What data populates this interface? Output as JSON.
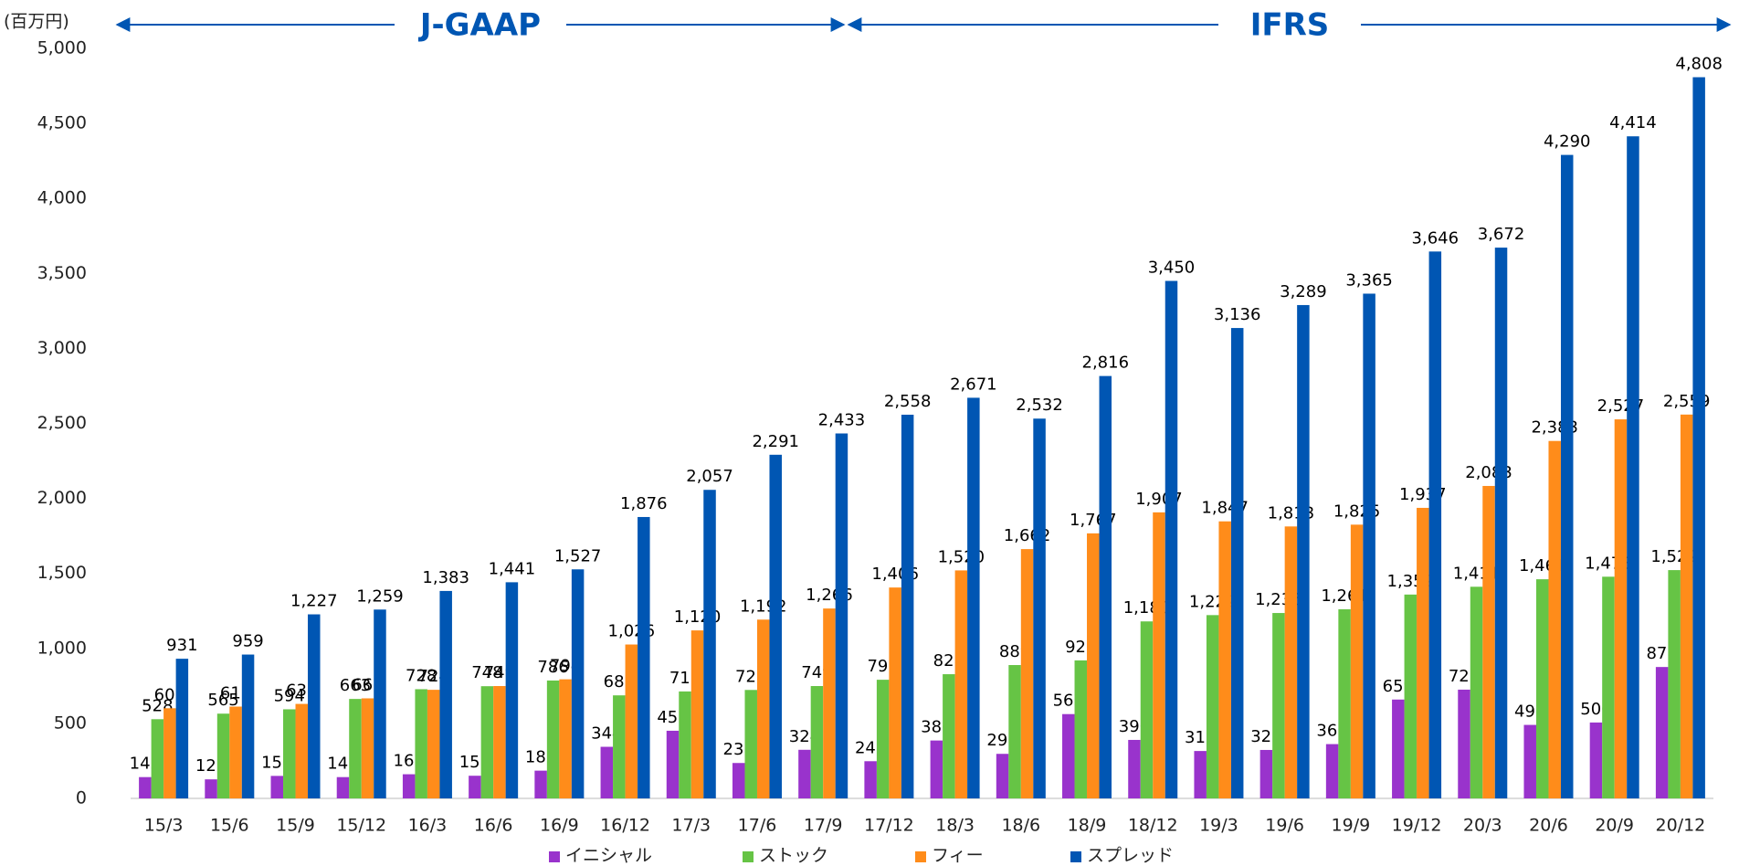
{
  "chart_data": {
    "type": "bar",
    "unit_label": "(百万円)",
    "annotations": [
      "J-GAAP",
      "IFRS"
    ],
    "categories": [
      "15/3",
      "15/6",
      "15/9",
      "15/12",
      "16/3",
      "16/6",
      "16/9",
      "16/12",
      "17/3",
      "17/6",
      "17/9",
      "17/12",
      "18/3",
      "18/6",
      "18/9",
      "18/12",
      "19/3",
      "19/6",
      "19/9",
      "19/12",
      "20/3",
      "20/6",
      "20/9",
      "20/12"
    ],
    "series": [
      {
        "name": "イニシャル",
        "color": "#9933cc",
        "values": [
          142,
          127,
          150,
          142,
          161,
          151,
          185,
          344,
          451,
          236,
          324,
          248,
          386,
          297,
          562,
          390,
          316,
          323,
          362,
          659,
          725,
          490,
          506,
          876
        ]
      },
      {
        "name": "ストック",
        "color": "#66c445",
        "values": [
          528,
          565,
          594,
          663,
          728,
          748,
          786,
          687,
          713,
          723,
          749,
          791,
          828,
          889,
          920,
          1180,
          1222,
          1236,
          1261,
          1359,
          1411,
          1461,
          1478,
          1522
        ],
        "value_labels": [
          "528",
          "565",
          "594",
          "663",
          "728",
          "748",
          "786",
          "687",
          "713",
          "723",
          "749",
          "791",
          "828",
          "889",
          "920",
          "1,180",
          "1,222",
          "1,236",
          "1,261",
          "1,359",
          "1,411",
          "1,461",
          "1,478",
          "1,522"
        ]
      },
      {
        "name": "フィー",
        "color": "#ff8c1a",
        "values": [
          601,
          612,
          630,
          667,
          724,
          749,
          794,
          1026,
          1120,
          1192,
          1266,
          1406,
          1520,
          1662,
          1767,
          1907,
          1847,
          1813,
          1825,
          1937,
          2083,
          2383,
          2527,
          2559
        ],
        "value_labels": [
          "601",
          "612",
          "630",
          "667",
          "724",
          "749",
          "794",
          "1,026",
          "1,120",
          "1,192",
          "1,266",
          "1,406",
          "1,520",
          "1,662",
          "1,767",
          "1,907",
          "1,847",
          "1,813",
          "1,825",
          "1,937",
          "2,083",
          "2,383",
          "2,527",
          "2,559"
        ]
      },
      {
        "name": "スプレッド",
        "color": "#0056b3",
        "values": [
          931,
          959,
          1227,
          1259,
          1383,
          1441,
          1527,
          1876,
          2057,
          2291,
          2433,
          2558,
          2671,
          2532,
          2816,
          3450,
          3136,
          3289,
          3365,
          3646,
          3672,
          4290,
          4414,
          4808
        ],
        "value_labels": [
          "931",
          "959",
          "1,227",
          "1,259",
          "1,383",
          "1,441",
          "1,527",
          "1,876",
          "2,057",
          "2,291",
          "2,433",
          "2,558",
          "2,671",
          "2,532",
          "2,816",
          "3,450",
          "3,136",
          "3,289",
          "3,365",
          "3,646",
          "3,672",
          "4,290",
          "4,414",
          "4,808"
        ]
      }
    ],
    "ylim": [
      0,
      5000
    ],
    "yticks": [
      0,
      500,
      {
        "value": 1000,
        "label": "1,000"
      },
      {
        "value": 1500,
        "label": "1,500"
      },
      {
        "value": 2000,
        "label": "2,000"
      },
      {
        "value": 2500,
        "label": "2,500"
      },
      {
        "value": 3000,
        "label": "3,000"
      },
      {
        "value": 3500,
        "label": "3,500"
      },
      {
        "value": 4000,
        "label": "4,000"
      },
      {
        "value": 4500,
        "label": "4,500"
      },
      {
        "value": 5000,
        "label": "5,000"
      }
    ]
  }
}
